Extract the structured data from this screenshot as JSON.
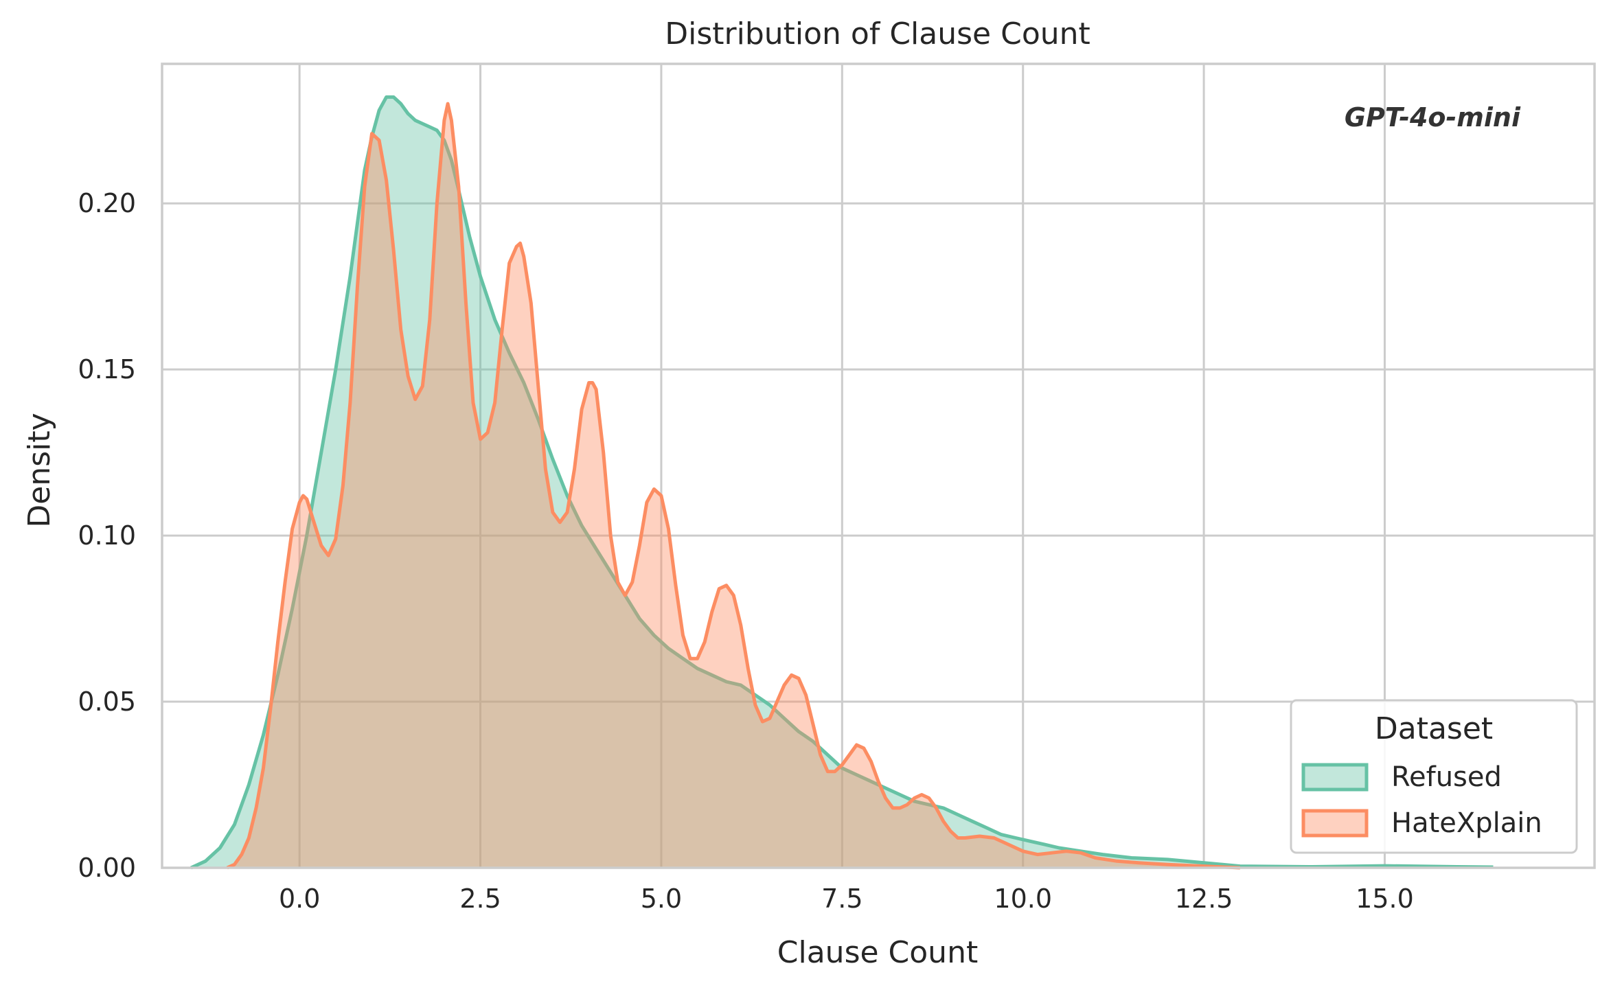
{
  "chart_data": {
    "type": "area",
    "title": "Distribution of Clause Count",
    "xlabel": "Clause Count",
    "ylabel": "Density",
    "annotation": "GPT-4o-mini",
    "xlim": [
      -1.9,
      17.9
    ],
    "ylim": [
      0,
      0.242
    ],
    "xticks": [
      0.0,
      2.5,
      5.0,
      7.5,
      10.0,
      12.5,
      15.0
    ],
    "xtick_labels": [
      "0.0",
      "2.5",
      "5.0",
      "7.5",
      "10.0",
      "12.5",
      "15.0"
    ],
    "yticks": [
      0.0,
      0.05,
      0.1,
      0.15,
      0.2
    ],
    "ytick_labels": [
      "0.00",
      "0.05",
      "0.10",
      "0.15",
      "0.20"
    ],
    "grid": true,
    "legend": {
      "title": "Dataset",
      "placement": "lower-right"
    },
    "series": [
      {
        "name": "Refused",
        "color": "#66c2a5",
        "points": [
          [
            -1.5,
            0.0
          ],
          [
            -1.3,
            0.002
          ],
          [
            -1.1,
            0.006
          ],
          [
            -0.9,
            0.013
          ],
          [
            -0.7,
            0.025
          ],
          [
            -0.5,
            0.04
          ],
          [
            -0.3,
            0.058
          ],
          [
            -0.1,
            0.078
          ],
          [
            0.1,
            0.1
          ],
          [
            0.3,
            0.125
          ],
          [
            0.5,
            0.15
          ],
          [
            0.7,
            0.178
          ],
          [
            0.9,
            0.21
          ],
          [
            1.0,
            0.22
          ],
          [
            1.1,
            0.228
          ],
          [
            1.2,
            0.232
          ],
          [
            1.3,
            0.232
          ],
          [
            1.4,
            0.23
          ],
          [
            1.5,
            0.227
          ],
          [
            1.6,
            0.225
          ],
          [
            1.7,
            0.224
          ],
          [
            1.8,
            0.223
          ],
          [
            1.9,
            0.222
          ],
          [
            2.0,
            0.219
          ],
          [
            2.1,
            0.213
          ],
          [
            2.2,
            0.204
          ],
          [
            2.35,
            0.19
          ],
          [
            2.5,
            0.178
          ],
          [
            2.7,
            0.165
          ],
          [
            2.9,
            0.155
          ],
          [
            3.1,
            0.146
          ],
          [
            3.3,
            0.135
          ],
          [
            3.5,
            0.123
          ],
          [
            3.7,
            0.112
          ],
          [
            3.9,
            0.103
          ],
          [
            4.1,
            0.096
          ],
          [
            4.3,
            0.089
          ],
          [
            4.5,
            0.082
          ],
          [
            4.7,
            0.075
          ],
          [
            4.9,
            0.07
          ],
          [
            5.1,
            0.066
          ],
          [
            5.3,
            0.063
          ],
          [
            5.5,
            0.06
          ],
          [
            5.7,
            0.058
          ],
          [
            5.9,
            0.056
          ],
          [
            6.1,
            0.055
          ],
          [
            6.3,
            0.052
          ],
          [
            6.5,
            0.049
          ],
          [
            6.7,
            0.045
          ],
          [
            6.9,
            0.041
          ],
          [
            7.1,
            0.038
          ],
          [
            7.3,
            0.034
          ],
          [
            7.5,
            0.03
          ],
          [
            7.7,
            0.028
          ],
          [
            7.9,
            0.026
          ],
          [
            8.1,
            0.024
          ],
          [
            8.3,
            0.022
          ],
          [
            8.5,
            0.02
          ],
          [
            8.7,
            0.019
          ],
          [
            8.9,
            0.018
          ],
          [
            9.1,
            0.016
          ],
          [
            9.3,
            0.014
          ],
          [
            9.5,
            0.012
          ],
          [
            9.7,
            0.01
          ],
          [
            9.9,
            0.009
          ],
          [
            10.1,
            0.008
          ],
          [
            10.3,
            0.007
          ],
          [
            10.5,
            0.006
          ],
          [
            10.8,
            0.005
          ],
          [
            11.1,
            0.004
          ],
          [
            11.5,
            0.003
          ],
          [
            12.0,
            0.0025
          ],
          [
            12.5,
            0.0015
          ],
          [
            13.0,
            0.0005
          ],
          [
            14.0,
            0.0003
          ],
          [
            15.0,
            0.0006
          ],
          [
            16.0,
            0.0003
          ],
          [
            16.5,
            0.0002
          ]
        ]
      },
      {
        "name": "HateXplain",
        "color": "#fc8d62",
        "points": [
          [
            -1.0,
            0.0
          ],
          [
            -0.9,
            0.001
          ],
          [
            -0.8,
            0.004
          ],
          [
            -0.7,
            0.009
          ],
          [
            -0.6,
            0.018
          ],
          [
            -0.5,
            0.03
          ],
          [
            -0.4,
            0.048
          ],
          [
            -0.3,
            0.068
          ],
          [
            -0.2,
            0.086
          ],
          [
            -0.1,
            0.102
          ],
          [
            0.0,
            0.11
          ],
          [
            0.05,
            0.112
          ],
          [
            0.1,
            0.111
          ],
          [
            0.2,
            0.104
          ],
          [
            0.3,
            0.097
          ],
          [
            0.4,
            0.094
          ],
          [
            0.5,
            0.099
          ],
          [
            0.6,
            0.115
          ],
          [
            0.7,
            0.14
          ],
          [
            0.8,
            0.175
          ],
          [
            0.9,
            0.205
          ],
          [
            1.0,
            0.221
          ],
          [
            1.1,
            0.219
          ],
          [
            1.2,
            0.207
          ],
          [
            1.3,
            0.186
          ],
          [
            1.4,
            0.162
          ],
          [
            1.5,
            0.148
          ],
          [
            1.6,
            0.141
          ],
          [
            1.7,
            0.145
          ],
          [
            1.8,
            0.165
          ],
          [
            1.9,
            0.2
          ],
          [
            2.0,
            0.225
          ],
          [
            2.05,
            0.23
          ],
          [
            2.1,
            0.225
          ],
          [
            2.2,
            0.205
          ],
          [
            2.3,
            0.17
          ],
          [
            2.4,
            0.14
          ],
          [
            2.5,
            0.129
          ],
          [
            2.6,
            0.131
          ],
          [
            2.7,
            0.14
          ],
          [
            2.8,
            0.162
          ],
          [
            2.9,
            0.182
          ],
          [
            3.0,
            0.187
          ],
          [
            3.05,
            0.188
          ],
          [
            3.1,
            0.184
          ],
          [
            3.2,
            0.17
          ],
          [
            3.3,
            0.145
          ],
          [
            3.4,
            0.12
          ],
          [
            3.5,
            0.107
          ],
          [
            3.6,
            0.104
          ],
          [
            3.7,
            0.107
          ],
          [
            3.8,
            0.12
          ],
          [
            3.9,
            0.138
          ],
          [
            4.0,
            0.146
          ],
          [
            4.05,
            0.146
          ],
          [
            4.1,
            0.144
          ],
          [
            4.2,
            0.125
          ],
          [
            4.3,
            0.1
          ],
          [
            4.4,
            0.086
          ],
          [
            4.5,
            0.082
          ],
          [
            4.6,
            0.086
          ],
          [
            4.7,
            0.097
          ],
          [
            4.8,
            0.11
          ],
          [
            4.9,
            0.114
          ],
          [
            5.0,
            0.112
          ],
          [
            5.1,
            0.102
          ],
          [
            5.2,
            0.085
          ],
          [
            5.3,
            0.07
          ],
          [
            5.4,
            0.063
          ],
          [
            5.5,
            0.063
          ],
          [
            5.6,
            0.068
          ],
          [
            5.7,
            0.077
          ],
          [
            5.8,
            0.084
          ],
          [
            5.9,
            0.085
          ],
          [
            6.0,
            0.082
          ],
          [
            6.1,
            0.073
          ],
          [
            6.2,
            0.06
          ],
          [
            6.3,
            0.049
          ],
          [
            6.4,
            0.044
          ],
          [
            6.5,
            0.045
          ],
          [
            6.6,
            0.05
          ],
          [
            6.7,
            0.055
          ],
          [
            6.8,
            0.058
          ],
          [
            6.9,
            0.057
          ],
          [
            7.0,
            0.052
          ],
          [
            7.1,
            0.043
          ],
          [
            7.2,
            0.034
          ],
          [
            7.3,
            0.029
          ],
          [
            7.4,
            0.029
          ],
          [
            7.5,
            0.031
          ],
          [
            7.6,
            0.034
          ],
          [
            7.7,
            0.037
          ],
          [
            7.8,
            0.036
          ],
          [
            7.9,
            0.032
          ],
          [
            8.0,
            0.026
          ],
          [
            8.1,
            0.021
          ],
          [
            8.2,
            0.018
          ],
          [
            8.3,
            0.018
          ],
          [
            8.4,
            0.019
          ],
          [
            8.5,
            0.021
          ],
          [
            8.6,
            0.022
          ],
          [
            8.7,
            0.021
          ],
          [
            8.8,
            0.018
          ],
          [
            8.9,
            0.014
          ],
          [
            9.0,
            0.011
          ],
          [
            9.1,
            0.009
          ],
          [
            9.2,
            0.009
          ],
          [
            9.4,
            0.0095
          ],
          [
            9.6,
            0.009
          ],
          [
            9.8,
            0.007
          ],
          [
            10.0,
            0.005
          ],
          [
            10.2,
            0.004
          ],
          [
            10.4,
            0.0045
          ],
          [
            10.6,
            0.005
          ],
          [
            10.8,
            0.0045
          ],
          [
            11.0,
            0.003
          ],
          [
            11.3,
            0.002
          ],
          [
            11.6,
            0.0015
          ],
          [
            12.0,
            0.001
          ],
          [
            12.5,
            0.0005
          ],
          [
            13.0,
            0.0
          ]
        ]
      }
    ]
  }
}
